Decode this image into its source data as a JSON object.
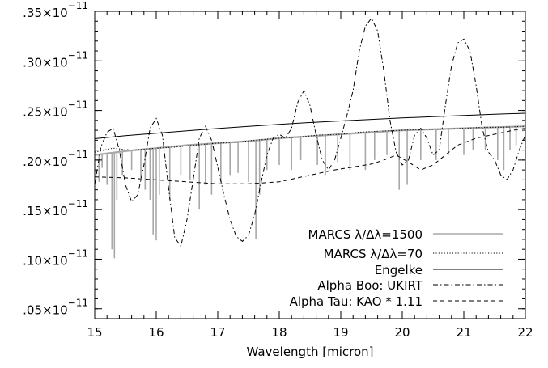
{
  "chart_data": {
    "type": "line",
    "title": "",
    "xlabel": "Wavelength [micron]",
    "ylabel": "",
    "xlim": [
      15,
      22
    ],
    "ylim": [
      4e-13,
      3.5e-12
    ],
    "x_ticks": [
      15,
      16,
      17,
      18,
      19,
      20,
      21,
      22
    ],
    "x_tick_labels": [
      "15",
      "16",
      "17",
      "18",
      "19",
      "20",
      "21",
      "22"
    ],
    "y_ticks": [
      5e-13,
      1e-12,
      1.5e-12,
      2e-12,
      2.5e-12,
      3e-12,
      3.5e-12
    ],
    "y_tick_labels": [
      {
        "mantissa": ".05×10",
        "exponent": "−11"
      },
      {
        "mantissa": ".10×10",
        "exponent": "−11"
      },
      {
        "mantissa": ".15×10",
        "exponent": "−11"
      },
      {
        "mantissa": ".20×10",
        "exponent": "−11"
      },
      {
        "mantissa": ".25×10",
        "exponent": "−11"
      },
      {
        "mantissa": ".30×10",
        "exponent": "−11"
      },
      {
        "mantissa": ".35×10",
        "exponent": "−11"
      }
    ],
    "grid": false,
    "legend_position": "bottom-right",
    "series": [
      {
        "name": "MARCS λ/Δλ=1500",
        "color": "#a8a8a8",
        "style": "solid-gray",
        "x": [
          15.0,
          15.5,
          16.0,
          16.5,
          17.0,
          17.5,
          18.0,
          18.5,
          19.0,
          19.5,
          20.0,
          20.5,
          21.0,
          21.5,
          22.0
        ],
        "y": [
          2.05e-12,
          2.09e-12,
          2.12e-12,
          2.15e-12,
          2.17e-12,
          2.19e-12,
          2.22e-12,
          2.24e-12,
          2.26e-12,
          2.28e-12,
          2.3e-12,
          2.31e-12,
          2.32e-12,
          2.33e-12,
          2.34e-12
        ],
        "absorption_lines": [
          [
            15.07,
            1.78e-12
          ],
          [
            15.12,
            1.92e-12
          ],
          [
            15.2,
            1.75e-12
          ],
          [
            15.28,
            1.1e-12
          ],
          [
            15.32,
            1.01e-12
          ],
          [
            15.36,
            1.6e-12
          ],
          [
            15.45,
            1.85e-12
          ],
          [
            15.6,
            1.9e-12
          ],
          [
            15.75,
            1.82e-12
          ],
          [
            15.82,
            1.7e-12
          ],
          [
            15.9,
            1.6e-12
          ],
          [
            15.95,
            1.25e-12
          ],
          [
            16.0,
            1.19e-12
          ],
          [
            16.05,
            1.65e-12
          ],
          [
            16.22,
            1.6e-12
          ],
          [
            16.4,
            1.85e-12
          ],
          [
            16.55,
            1.8e-12
          ],
          [
            16.7,
            1.5e-12
          ],
          [
            16.8,
            1.75e-12
          ],
          [
            16.9,
            1.65e-12
          ],
          [
            17.05,
            1.78e-12
          ],
          [
            17.2,
            1.85e-12
          ],
          [
            17.33,
            1.87e-12
          ],
          [
            17.5,
            1.78e-12
          ],
          [
            17.62,
            1.2e-12
          ],
          [
            17.68,
            1.65e-12
          ],
          [
            17.8,
            1.9e-12
          ],
          [
            18.0,
            1.95e-12
          ],
          [
            18.2,
            1.9e-12
          ],
          [
            18.35,
            2e-12
          ],
          [
            18.62,
            1.95e-12
          ],
          [
            18.75,
            1.85e-12
          ],
          [
            18.95,
            1.98e-12
          ],
          [
            19.15,
            1.9e-12
          ],
          [
            19.4,
            1.9e-12
          ],
          [
            19.55,
            2e-12
          ],
          [
            19.75,
            2.05e-12
          ],
          [
            19.95,
            1.7e-12
          ],
          [
            20.08,
            1.75e-12
          ],
          [
            20.3,
            2e-12
          ],
          [
            20.55,
            2e-12
          ],
          [
            20.75,
            2.05e-12
          ],
          [
            21.0,
            2.05e-12
          ],
          [
            21.15,
            2.1e-12
          ],
          [
            21.35,
            2.1e-12
          ],
          [
            21.55,
            2e-12
          ],
          [
            21.65,
            1.9e-12
          ],
          [
            21.75,
            2.1e-12
          ],
          [
            21.85,
            2.15e-12
          ]
        ]
      },
      {
        "name": "MARCS λ/Δλ=70",
        "color": "#000000",
        "style": "dotted",
        "x": [
          15.0,
          15.3,
          15.6,
          16.0,
          16.3,
          16.6,
          17.0,
          17.3,
          17.6,
          18.0,
          18.3,
          18.6,
          19.0,
          19.3,
          19.6,
          20.0,
          20.3,
          20.6,
          21.0,
          21.3,
          21.6,
          22.0
        ],
        "y": [
          2.08e-12,
          2.12e-12,
          2.1e-12,
          2.12e-12,
          2.13e-12,
          2.15e-12,
          2.17e-12,
          2.18e-12,
          2.2e-12,
          2.22e-12,
          2.23e-12,
          2.25e-12,
          2.26e-12,
          2.28e-12,
          2.29e-12,
          2.3e-12,
          2.31e-12,
          2.31e-12,
          2.32e-12,
          2.33e-12,
          2.33e-12,
          2.34e-12
        ]
      },
      {
        "name": "Engelke",
        "color": "#000000",
        "style": "solid",
        "x": [
          15.0,
          15.5,
          16.0,
          16.5,
          17.0,
          17.5,
          18.0,
          18.5,
          19.0,
          19.5,
          20.0,
          20.5,
          21.0,
          21.5,
          22.0
        ],
        "y": [
          2.215e-12,
          2.245e-12,
          2.27e-12,
          2.295e-12,
          2.318e-12,
          2.34e-12,
          2.36e-12,
          2.378e-12,
          2.395e-12,
          2.41e-12,
          2.425e-12,
          2.438e-12,
          2.45e-12,
          2.462e-12,
          2.472e-12
        ]
      },
      {
        "name": "Alpha Boo: UKIRT",
        "color": "#000000",
        "style": "dash-dot",
        "x": [
          15.0,
          15.1,
          15.2,
          15.3,
          15.4,
          15.5,
          15.6,
          15.7,
          15.8,
          15.9,
          16.0,
          16.1,
          16.2,
          16.3,
          16.4,
          16.5,
          16.6,
          16.7,
          16.8,
          16.9,
          17.0,
          17.1,
          17.2,
          17.3,
          17.4,
          17.5,
          17.6,
          17.7,
          17.8,
          17.9,
          18.0,
          18.1,
          18.2,
          18.3,
          18.4,
          18.5,
          18.6,
          18.7,
          18.8,
          18.9,
          19.0,
          19.1,
          19.2,
          19.3,
          19.4,
          19.5,
          19.6,
          19.7,
          19.8,
          19.9,
          20.0,
          20.1,
          20.2,
          20.3,
          20.4,
          20.5,
          20.6,
          20.7,
          20.8,
          20.9,
          21.0,
          21.1,
          21.2,
          21.3,
          21.4,
          21.5,
          21.6,
          21.7,
          21.8,
          21.9,
          22.0
        ],
        "y": [
          1.75e-12,
          2.13e-12,
          2.28e-12,
          2.32e-12,
          2.1e-12,
          1.75e-12,
          1.58e-12,
          1.65e-12,
          1.95e-12,
          2.32e-12,
          2.42e-12,
          2.25e-12,
          1.72e-12,
          1.22e-12,
          1.13e-12,
          1.4e-12,
          1.8e-12,
          2.22e-12,
          2.34e-12,
          2.2e-12,
          1.93e-12,
          1.65e-12,
          1.4e-12,
          1.23e-12,
          1.18e-12,
          1.24e-12,
          1.45e-12,
          1.76e-12,
          2.05e-12,
          2.22e-12,
          2.26e-12,
          2.22e-12,
          2.32e-12,
          2.58e-12,
          2.7e-12,
          2.55e-12,
          2.25e-12,
          2e-12,
          1.9e-12,
          2e-12,
          2.22e-12,
          2.45e-12,
          2.7e-12,
          3.1e-12,
          3.35e-12,
          3.43e-12,
          3.3e-12,
          2.9e-12,
          2.4e-12,
          2.08e-12,
          1.95e-12,
          2e-12,
          2.25e-12,
          2.32e-12,
          2.22e-12,
          2.05e-12,
          2.1e-12,
          2.55e-12,
          2.95e-12,
          3.18e-12,
          3.22e-12,
          3.1e-12,
          2.75e-12,
          2.32e-12,
          2.08e-12,
          2e-12,
          1.85e-12,
          1.8e-12,
          1.9e-12,
          2.1e-12,
          2.25e-12
        ]
      },
      {
        "name": "Alpha Tau: KAO * 1.11",
        "color": "#000000",
        "style": "dashed",
        "x": [
          15.0,
          15.5,
          16.0,
          16.5,
          17.0,
          17.5,
          18.0,
          18.3,
          18.6,
          18.9,
          19.2,
          19.5,
          19.7,
          19.9,
          20.1,
          20.3,
          20.5,
          20.7,
          20.9,
          21.2,
          21.5,
          21.8,
          22.0
        ],
        "y": [
          1.83e-12,
          1.82e-12,
          1.8e-12,
          1.78e-12,
          1.76e-12,
          1.76e-12,
          1.78e-12,
          1.82e-12,
          1.86e-12,
          1.9e-12,
          1.93e-12,
          1.96e-12,
          2e-12,
          2.05e-12,
          1.98e-12,
          1.9e-12,
          1.95e-12,
          2.05e-12,
          2.15e-12,
          2.22e-12,
          2.26e-12,
          2.3e-12,
          2.32e-12
        ]
      }
    ]
  }
}
